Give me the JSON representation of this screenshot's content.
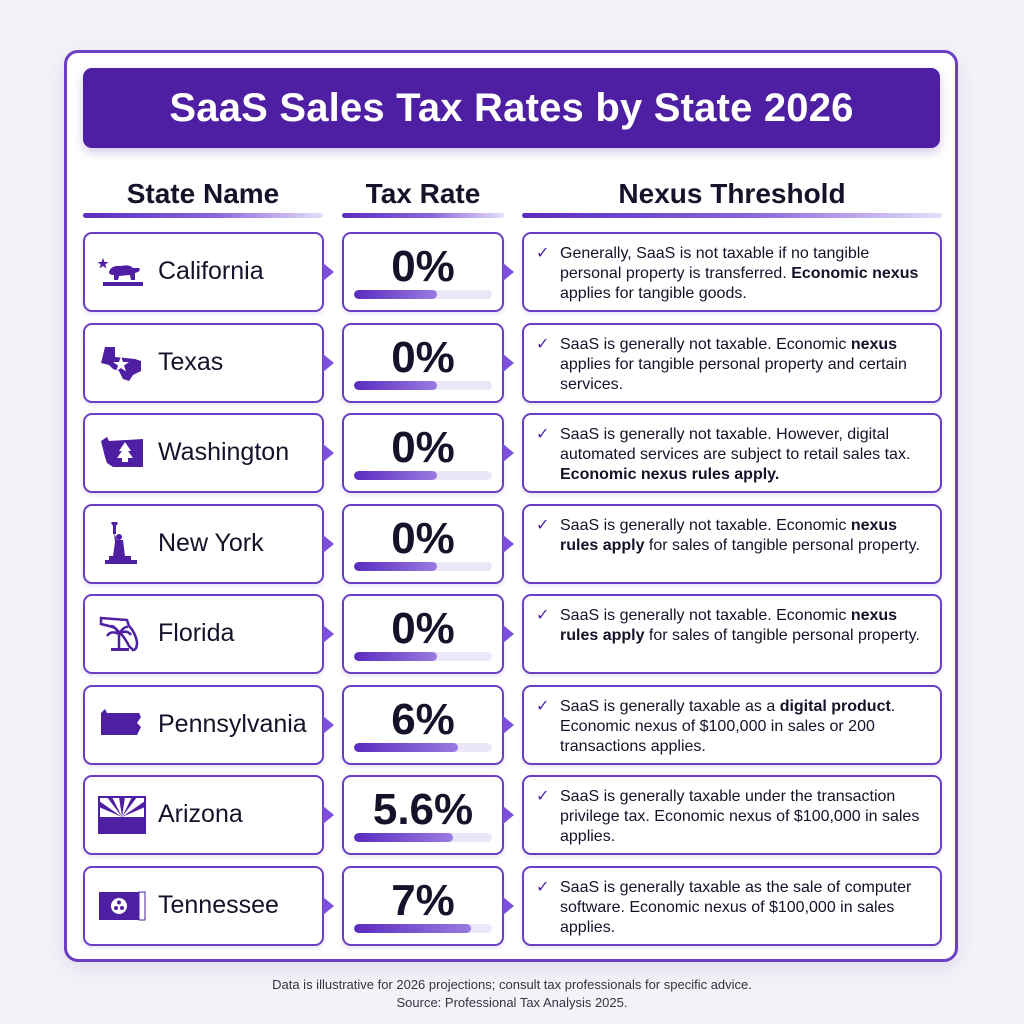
{
  "title": "SaaS Sales Tax Rates by State 2026",
  "headers": {
    "state": "State Name",
    "rate": "Tax Rate",
    "nexus": "Nexus Threshold"
  },
  "accent_color": "#4e1fa3",
  "rows": [
    {
      "state": "California",
      "icon": "california-bear-icon",
      "rate": "0%",
      "rate_bar_fraction": 0.6,
      "nexus_parts": [
        {
          "text": "Generally, SaaS is not taxable if no tangible personal property is transferred. ",
          "bold": false
        },
        {
          "text": "Economic nexus",
          "bold": true
        },
        {
          "text": " applies for tangible goods.",
          "bold": false
        }
      ]
    },
    {
      "state": "Texas",
      "icon": "texas-map-icon",
      "rate": "0%",
      "rate_bar_fraction": 0.6,
      "nexus_parts": [
        {
          "text": "SaaS is generally not taxable. Economic ",
          "bold": false
        },
        {
          "text": "nexus",
          "bold": true
        },
        {
          "text": " applies for tangible personal property and certain services.",
          "bold": false
        }
      ]
    },
    {
      "state": "Washington",
      "icon": "washington-tree-icon",
      "rate": "0%",
      "rate_bar_fraction": 0.6,
      "nexus_parts": [
        {
          "text": "SaaS is generally not taxable. However, digital automated services are subject to retail sales tax. ",
          "bold": false
        },
        {
          "text": "Economic nexus rules apply.",
          "bold": true
        }
      ]
    },
    {
      "state": "New York",
      "icon": "statue-of-liberty-icon",
      "rate": "0%",
      "rate_bar_fraction": 0.6,
      "nexus_parts": [
        {
          "text": "SaaS is generally not taxable. Economic ",
          "bold": false
        },
        {
          "text": "nexus rules apply",
          "bold": true
        },
        {
          "text": " for sales of tangible personal property.",
          "bold": false
        }
      ]
    },
    {
      "state": "Florida",
      "icon": "florida-palm-icon",
      "rate": "0%",
      "rate_bar_fraction": 0.6,
      "nexus_parts": [
        {
          "text": "SaaS is generally not taxable. Economic ",
          "bold": false
        },
        {
          "text": "nexus rules apply",
          "bold": true
        },
        {
          "text": " for sales of tangible personal property.",
          "bold": false
        }
      ]
    },
    {
      "state": "Pennsylvania",
      "icon": "pennsylvania-map-icon",
      "rate": "6%",
      "rate_bar_fraction": 0.75,
      "nexus_parts": [
        {
          "text": "SaaS is generally taxable as a ",
          "bold": false
        },
        {
          "text": "digital product",
          "bold": true
        },
        {
          "text": ". Economic nexus of $100,000 in sales or 200 transactions applies.",
          "bold": false
        }
      ]
    },
    {
      "state": "Arizona",
      "icon": "arizona-flag-icon",
      "rate": "5.6%",
      "rate_bar_fraction": 0.72,
      "nexus_parts": [
        {
          "text": "SaaS is generally taxable under the transaction privilege tax. Economic nexus of $100,000 in sales applies.",
          "bold": false
        }
      ]
    },
    {
      "state": "Tennessee",
      "icon": "tennessee-flag-icon",
      "rate": "7%",
      "rate_bar_fraction": 0.85,
      "nexus_parts": [
        {
          "text": "SaaS is generally taxable as the sale of computer software. Economic nexus of $100,000 in sales applies.",
          "bold": false
        }
      ]
    }
  ],
  "footer": {
    "line1": "Data is illustrative for 2026 projections; consult tax professionals for specific advice.",
    "line2": "Source: Professional Tax Analysis 2025."
  }
}
